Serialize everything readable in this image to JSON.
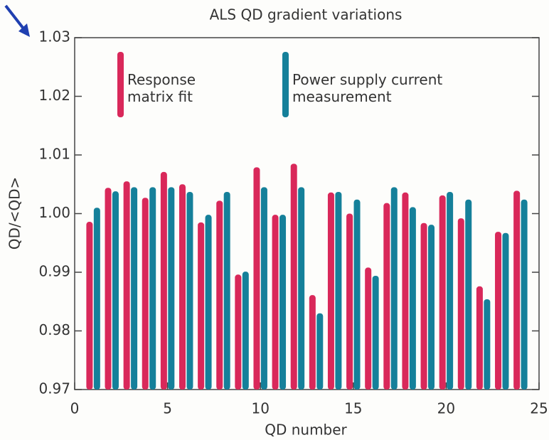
{
  "chart_data": {
    "type": "bar",
    "title": "ALS QD gradient variations",
    "x_label": "QD number",
    "y_label": "QD/<QD>",
    "x": [
      1,
      2,
      3,
      4,
      5,
      6,
      7,
      8,
      9,
      10,
      11,
      12,
      13,
      14,
      15,
      16,
      17,
      18,
      19,
      20,
      21,
      22,
      23,
      24
    ],
    "series": [
      {
        "name": "Response matrix fit",
        "color": "#d9285a",
        "values": [
          0.9986,
          1.0044,
          1.0055,
          1.0027,
          1.0071,
          1.005,
          0.9985,
          1.0022,
          0.9896,
          1.0079,
          0.9998,
          1.0085,
          0.9861,
          1.0036,
          1.0,
          0.9908,
          1.0018,
          1.0036,
          0.9984,
          1.0031,
          0.9992,
          0.9876,
          0.9969,
          1.0039
        ]
      },
      {
        "name": "Power supply current measurement",
        "color": "#15809a",
        "values": [
          1.001,
          1.0038,
          1.0045,
          1.0045,
          1.0045,
          1.0037,
          0.9998,
          1.0037,
          0.9901,
          1.0045,
          0.9998,
          1.0045,
          0.983,
          1.0037,
          1.0024,
          0.9894,
          1.0045,
          1.0011,
          0.9981,
          1.0037,
          1.0024,
          0.9854,
          0.9967,
          1.0024
        ]
      }
    ],
    "xlim": [
      0,
      25
    ],
    "xticks": [
      0,
      5,
      10,
      15,
      20,
      25
    ],
    "ylim": [
      0.97,
      1.03
    ],
    "yticks": [
      0.97,
      0.98,
      0.99,
      {
        "value": 1,
        "label": "1.00"
      },
      1.01,
      1.02,
      1.03
    ],
    "grid": false
  }
}
